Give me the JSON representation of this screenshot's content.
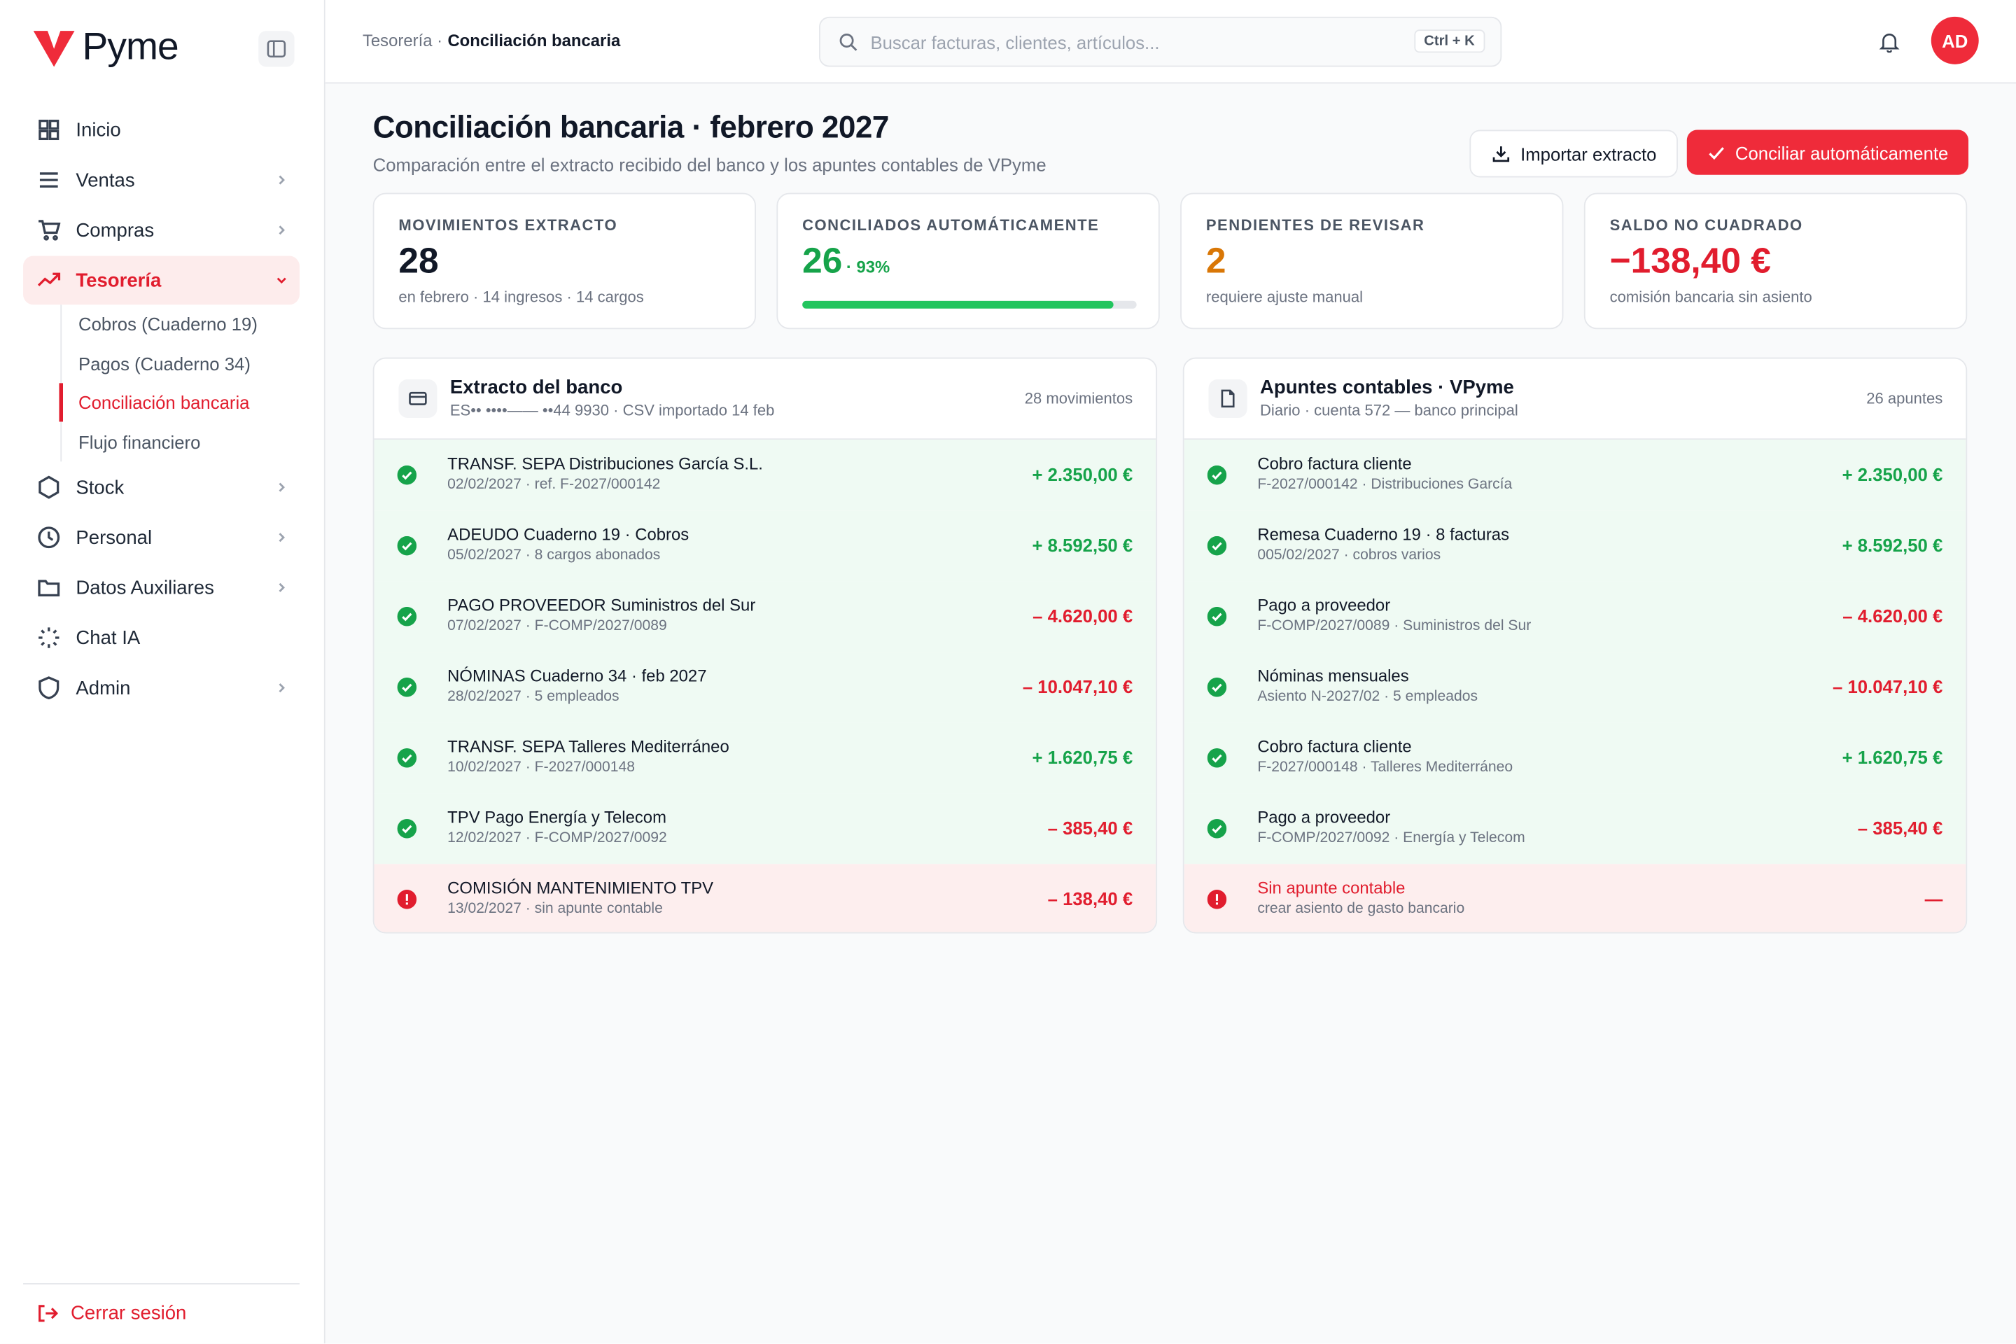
{
  "sidebar": {
    "brand": "Pyme",
    "nav": [
      "Inicio",
      "Ventas",
      "Compras",
      "Tesorería",
      "Stock",
      "Personal",
      "Datos Auxiliares",
      "Chat IA",
      "Admin"
    ],
    "treasury_sub": [
      "Cobros (Cuaderno 19)",
      "Pagos (Cuaderno 34)",
      "Conciliación bancaria",
      "Flujo financiero"
    ],
    "logout": "Cerrar sesión"
  },
  "topbar": {
    "breadcrumb_parent": "Tesorería ·",
    "breadcrumb_current": "Conciliación bancaria",
    "search_placeholder": "Buscar facturas, clientes, artículos...",
    "shortcut": "Ctrl + K",
    "avatar": "AD"
  },
  "header": {
    "title": "Conciliación bancaria · febrero 2027",
    "subtitle": "Comparación entre el extracto recibido del banco y los apuntes contables de VPyme",
    "import_button": "Importar extracto",
    "reconcile_button": "Conciliar automáticamente"
  },
  "kpis": [
    {
      "label": "MOVIMIENTOS EXTRACTO",
      "value": "28",
      "note": "en febrero · 14 ingresos · 14 cargos"
    },
    {
      "label": "CONCILIADOS AUTOMÁTICAMENTE",
      "value": "26",
      "percent_label": "· 93%",
      "progress": 93
    },
    {
      "label": "PENDIENTES DE REVISAR",
      "value": "2",
      "note": "requiere ajuste manual"
    },
    {
      "label": "SALDO NO CUADRADO",
      "value": "−138,40 €",
      "note": "comisión bancaria sin asiento"
    }
  ],
  "panels": [
    {
      "title": "Extracto del banco",
      "subtitle": "ES•• ••••—— ••44 9930 · CSV importado 14 feb",
      "count": "28 movimientos",
      "rows": [
        {
          "title": "TRANSF. SEPA Distribuciones García S.L.",
          "detail": "02/02/2027 · ref. F-2027/000142",
          "amount": "+ 2.350,00 €"
        },
        {
          "title": "ADEUDO Cuaderno 19 · Cobros",
          "detail": "05/02/2027 · 8 cargos abonados",
          "amount": "+ 8.592,50 €"
        },
        {
          "title": "PAGO PROVEEDOR Suministros del Sur",
          "detail": "07/02/2027 · F-COMP/2027/0089",
          "amount": "– 4.620,00 €"
        },
        {
          "title": "NÓMINAS Cuaderno 34 · feb 2027",
          "detail": "28/02/2027 · 5 empleados",
          "amount": "– 10.047,10 €"
        },
        {
          "title": "TRANSF. SEPA Talleres Mediterráneo",
          "detail": "10/02/2027 · F-2027/000148",
          "amount": "+ 1.620,75 €"
        },
        {
          "title": "TPV Pago Energía y Telecom",
          "detail": "12/02/2027 · F-COMP/2027/0092",
          "amount": "– 385,40 €"
        },
        {
          "title": "COMISIÓN MANTENIMIENTO TPV",
          "detail": "13/02/2027 · sin apunte contable",
          "amount": "– 138,40 €"
        }
      ]
    },
    {
      "title": "Apuntes contables · VPyme",
      "subtitle": "Diario · cuenta 572 — banco principal",
      "count": "26 apuntes",
      "rows": [
        {
          "title": "Cobro factura cliente",
          "detail": "F-2027/000142 · Distribuciones García",
          "amount": "+ 2.350,00 €"
        },
        {
          "title": "Remesa Cuaderno 19 · 8 facturas",
          "detail": "005/02/2027 · cobros varios",
          "amount": "+ 8.592,50 €"
        },
        {
          "title": "Pago a proveedor",
          "detail": "F-COMP/2027/0089 · Suministros del Sur",
          "amount": "– 4.620,00 €"
        },
        {
          "title": "Nóminas mensuales",
          "detail": "Asiento N-2027/02 · 5 empleados",
          "amount": "– 10.047,10 €"
        },
        {
          "title": "Cobro factura cliente",
          "detail": "F-2027/000148 · Talleres Mediterráneo",
          "amount": "+ 1.620,75 €"
        },
        {
          "title": "Pago a proveedor",
          "detail": "F-COMP/2027/0092 · Energía y Telecom",
          "amount": "– 385,40 €"
        },
        {
          "title": "Sin apunte contable",
          "detail": "crear asiento de gasto bancario",
          "amount": "—"
        }
      ]
    }
  ]
}
